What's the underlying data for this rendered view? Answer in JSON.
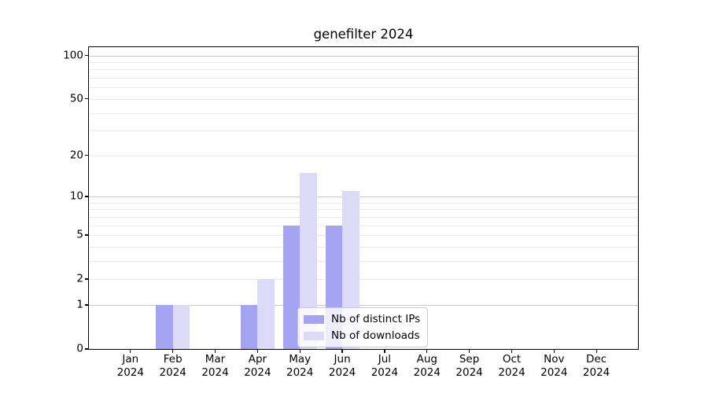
{
  "figure": {
    "title": "genefilter 2024"
  },
  "chart_data": {
    "type": "bar",
    "title": "genefilter 2024",
    "categories": [
      {
        "month": "Jan",
        "year": "2024"
      },
      {
        "month": "Feb",
        "year": "2024"
      },
      {
        "month": "Mar",
        "year": "2024"
      },
      {
        "month": "Apr",
        "year": "2024"
      },
      {
        "month": "May",
        "year": "2024"
      },
      {
        "month": "Jun",
        "year": "2024"
      },
      {
        "month": "Jul",
        "year": "2024"
      },
      {
        "month": "Aug",
        "year": "2024"
      },
      {
        "month": "Sep",
        "year": "2024"
      },
      {
        "month": "Oct",
        "year": "2024"
      },
      {
        "month": "Nov",
        "year": "2024"
      },
      {
        "month": "Dec",
        "year": "2024"
      }
    ],
    "series": [
      {
        "name": "Nb of distinct IPs",
        "color": "#a4a4f2",
        "values": [
          0,
          1,
          0,
          1,
          6,
          6,
          0,
          0,
          0,
          0,
          0,
          0
        ]
      },
      {
        "name": "Nb of downloads",
        "color": "#dbdbf8",
        "values": [
          0,
          1,
          0,
          2,
          15,
          11,
          0,
          0,
          0,
          0,
          0,
          0
        ]
      }
    ],
    "xlabel": "",
    "ylabel": "",
    "y_scale": "log1p",
    "y_ticks": [
      0,
      1,
      2,
      5,
      10,
      20,
      50,
      100
    ],
    "ylim": [
      0,
      114
    ],
    "grid_major": [
      1,
      10,
      100
    ],
    "grid_minor": [
      2,
      3,
      4,
      5,
      6,
      7,
      8,
      9,
      20,
      30,
      40,
      50,
      60,
      70,
      80,
      90
    ],
    "legend_position": "lower center",
    "grid": "on"
  },
  "colors": {
    "grid_major": "#c9c9c9",
    "grid_minor": "#ececec",
    "axis": "#000000"
  }
}
